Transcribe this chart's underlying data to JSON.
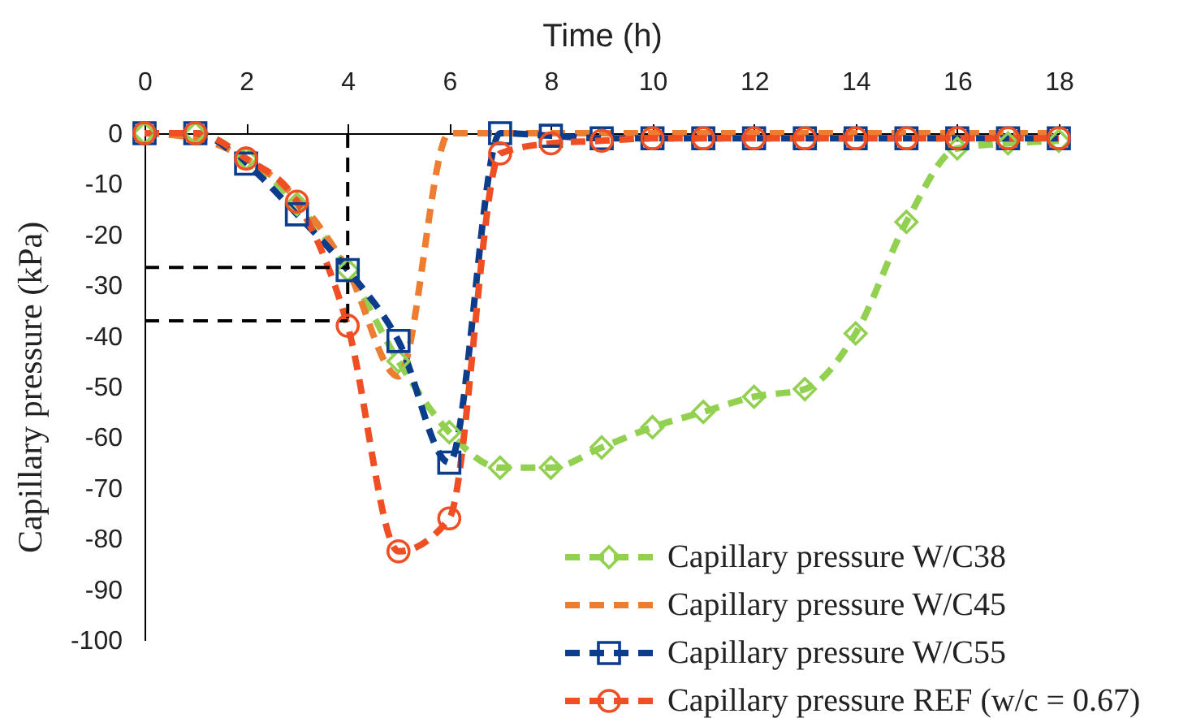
{
  "chart_data": {
    "type": "line",
    "xlabel": "Time (h)",
    "ylabel": "Capillary pressure (kPa)",
    "x": [
      0,
      1,
      2,
      3,
      4,
      5,
      6,
      7,
      8,
      9,
      10,
      11,
      12,
      13,
      14,
      15,
      16,
      17,
      18
    ],
    "xlim": [
      0,
      18
    ],
    "xticks": [
      0,
      2,
      4,
      6,
      8,
      10,
      12,
      14,
      16,
      18
    ],
    "ylim": [
      -100,
      0
    ],
    "yticks": [
      0,
      -10,
      -20,
      -30,
      -40,
      -50,
      -60,
      -70,
      -80,
      -90,
      -100
    ],
    "grid": false,
    "legend": "bottom right",
    "line_style": "dashed",
    "ref_lines": [
      {
        "axis": "x",
        "value": 4,
        "color": "#000000",
        "line_style": "dashed"
      },
      {
        "axis": "y",
        "value": -26.5,
        "color": "#000000",
        "line_style": "dashed"
      },
      {
        "axis": "y",
        "value": -37,
        "color": "#000000",
        "line_style": "dashed"
      }
    ],
    "series": [
      {
        "name": "Capillary pressure W/C38",
        "color": "#92d050",
        "marker": "diamond",
        "values": [
          0,
          0,
          -5,
          -14,
          -27,
          -45,
          -59,
          -66,
          -66,
          -62,
          -58,
          -55,
          -52,
          -50.5,
          -39.5,
          -17.5,
          -3,
          -2,
          -1.5
        ]
      },
      {
        "name": "Capillary pressure W/C45",
        "color": "#ed7d31",
        "marker": "none",
        "values": [
          0,
          -1,
          -5,
          -13,
          -27,
          -48,
          0,
          0,
          0,
          0,
          0,
          0,
          0,
          0,
          0,
          0,
          0,
          0,
          0
        ]
      },
      {
        "name": "Capillary pressure W/C55",
        "color": "#0b3d8c",
        "marker": "square",
        "values": [
          0,
          0,
          -6,
          -16,
          -27,
          -41,
          -65,
          0,
          -0.5,
          -1,
          -1,
          -1,
          -1,
          -1,
          -1,
          -1,
          -1,
          -1,
          -1
        ]
      },
      {
        "name": "Capillary pressure REF (w/c = 0.67)",
        "color": "#f04e23",
        "marker": "circle",
        "values": [
          0,
          0,
          -5,
          -13.5,
          -38,
          -82.5,
          -76,
          -4,
          -2,
          -1.5,
          -1,
          -1,
          -1,
          -1,
          -1,
          -1,
          -1,
          -1,
          -1
        ]
      }
    ]
  }
}
